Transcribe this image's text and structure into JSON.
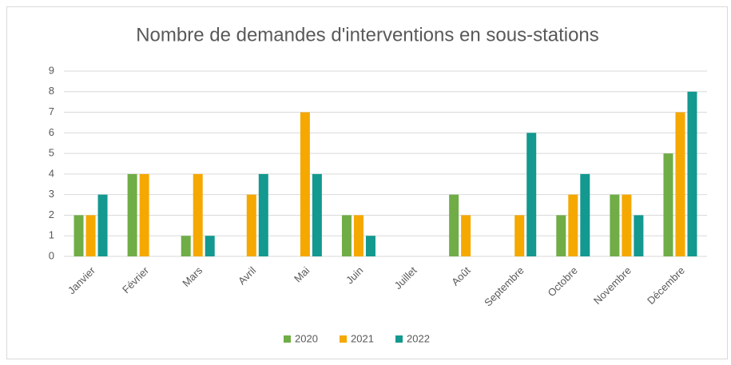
{
  "chart_data": {
    "type": "bar",
    "title": "Nombre de demandes d'interventions en sous-stations",
    "categories": [
      "Janvier",
      "Février",
      "Mars",
      "Avril",
      "Mai",
      "Juin",
      "Juillet",
      "Août",
      "Septembre",
      "Octobre",
      "Novembre",
      "Décembre"
    ],
    "series": [
      {
        "name": "2020",
        "color": "#70ad47",
        "values": [
          2,
          4,
          1,
          0,
          0,
          2,
          0,
          3,
          0,
          2,
          3,
          5
        ]
      },
      {
        "name": "2021",
        "color": "#f5a800",
        "values": [
          2,
          4,
          4,
          3,
          7,
          2,
          0,
          2,
          2,
          3,
          3,
          7
        ]
      },
      {
        "name": "2022",
        "color": "#13998f",
        "values": [
          3,
          0,
          1,
          4,
          4,
          1,
          0,
          0,
          6,
          4,
          2,
          8
        ]
      }
    ],
    "ylim": [
      0,
      9
    ],
    "yticks": [
      0,
      1,
      2,
      3,
      4,
      5,
      6,
      7,
      8,
      9
    ],
    "grid": true,
    "legend": "bottom"
  }
}
